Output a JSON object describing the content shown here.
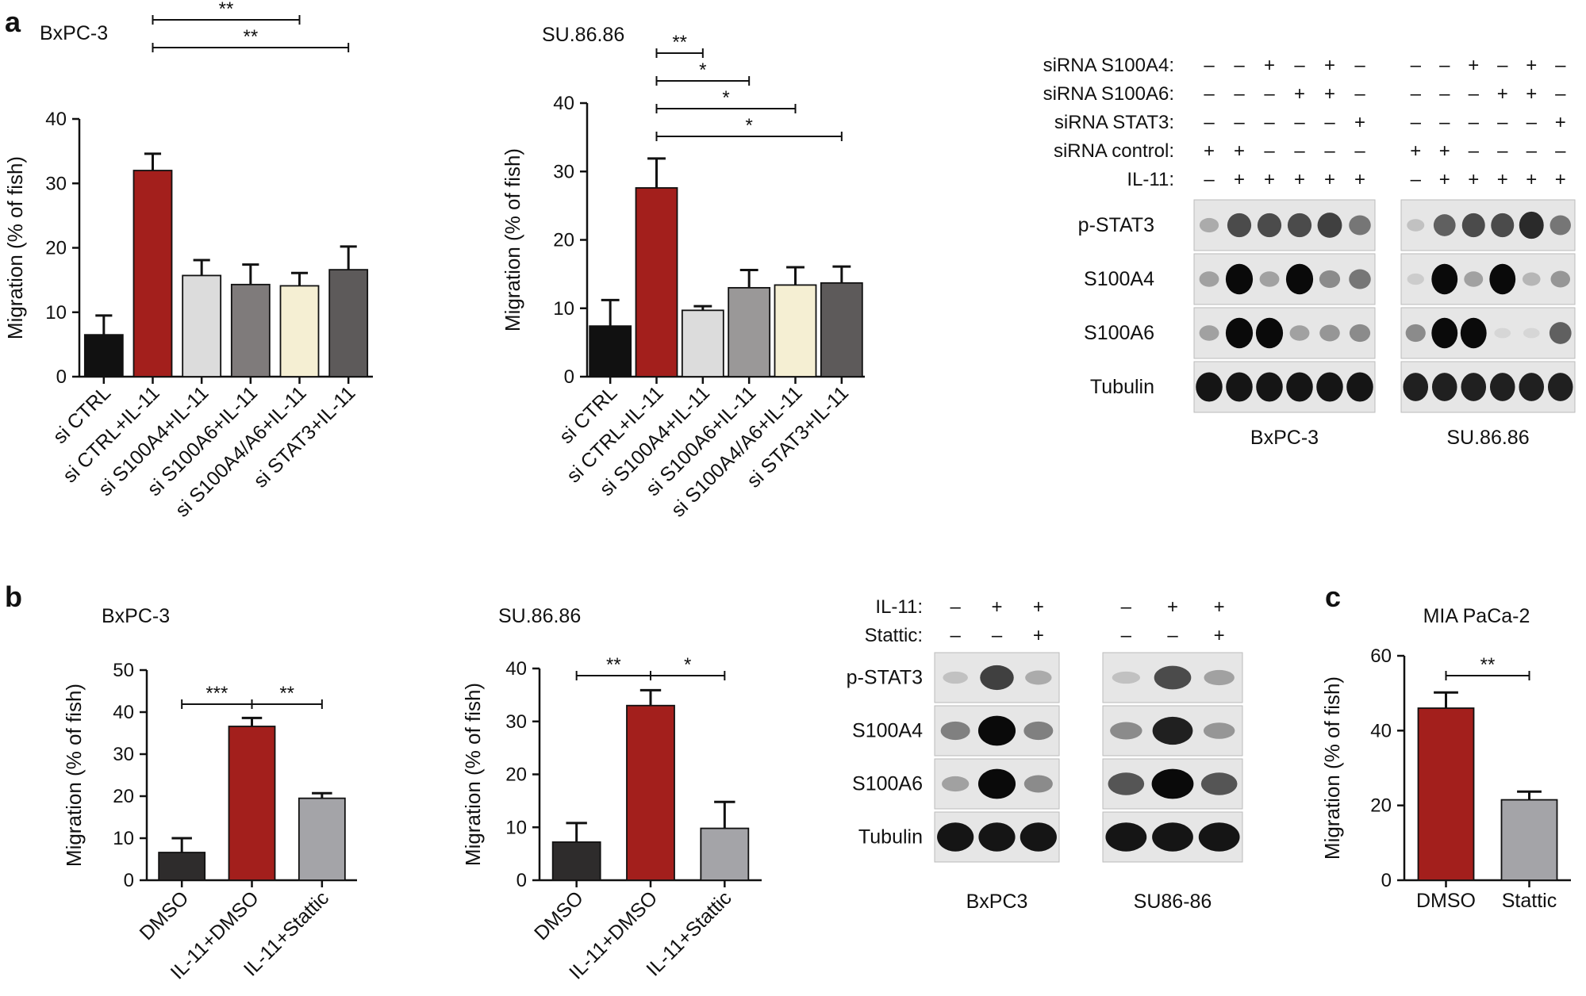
{
  "panels": {
    "a": "a",
    "b": "b",
    "c": "c"
  },
  "chart_data": [
    {
      "type": "bar",
      "panel": "a",
      "title": "BxPC-3",
      "ylabel": "Migration (% of fish)",
      "ylim": [
        0,
        40
      ],
      "yticks": [
        0,
        10,
        20,
        30,
        40
      ],
      "categories": [
        "si CTRL",
        "si CTRL+IL-11",
        "si S100A4+IL-11",
        "si S100A6+IL-11",
        "si S100A4/A6+IL-11",
        "si STAT3+IL-11"
      ],
      "values": [
        6.5,
        32,
        15.7,
        14.3,
        14.1,
        16.6
      ],
      "errors": [
        3.0,
        2.6,
        2.4,
        3.1,
        2.0,
        3.6
      ],
      "colors": [
        "#111111",
        "#a31f1c",
        "#dcdcdc",
        "#7f7b7b",
        "#f5efd3",
        "#5d5a5a"
      ],
      "significance": [
        {
          "from": 1,
          "to": 5,
          "label": "**"
        },
        {
          "from": 1,
          "to": 4,
          "label": "**"
        },
        {
          "from": 1,
          "to": 3,
          "label": "**"
        },
        {
          "from": 1,
          "to": 2,
          "label": "**"
        }
      ]
    },
    {
      "type": "bar",
      "panel": "a",
      "title": "SU.86.86",
      "ylabel": "Migration (% of fish)",
      "ylim": [
        0,
        40
      ],
      "yticks": [
        0,
        10,
        20,
        30,
        40
      ],
      "categories": [
        "si CTRL",
        "si CTRL+IL-11",
        "si S100A4+IL-11",
        "si S100A6+IL-11",
        "si S100A4/A6+IL-11",
        "si STAT3+IL-11"
      ],
      "values": [
        7.4,
        27.6,
        9.7,
        13.0,
        13.4,
        13.7
      ],
      "errors": [
        3.8,
        4.3,
        0.6,
        2.6,
        2.6,
        2.4
      ],
      "colors": [
        "#111111",
        "#a31f1c",
        "#dcdcdc",
        "#9a9898",
        "#f5efd3",
        "#5d5a5a"
      ],
      "significance": [
        {
          "from": 1,
          "to": 5,
          "label": "*"
        },
        {
          "from": 1,
          "to": 4,
          "label": "*"
        },
        {
          "from": 1,
          "to": 3,
          "label": "*"
        },
        {
          "from": 1,
          "to": 2,
          "label": "**"
        }
      ]
    },
    {
      "type": "bar",
      "panel": "b",
      "title": "BxPC-3",
      "ylabel": "Migration (% of fish)",
      "ylim": [
        0,
        50
      ],
      "yticks": [
        0,
        10,
        20,
        30,
        40,
        50
      ],
      "categories": [
        "DMSO",
        "IL-11+DMSO",
        "IL-11+Stattic"
      ],
      "values": [
        6.6,
        36.6,
        19.5
      ],
      "errors": [
        3.4,
        2.0,
        1.2
      ],
      "colors": [
        "#2e2c2c",
        "#a31f1c",
        "#a4a4a8"
      ],
      "significance": [
        {
          "from": 0,
          "to": 1,
          "label": "***"
        },
        {
          "from": 1,
          "to": 2,
          "label": "**"
        }
      ]
    },
    {
      "type": "bar",
      "panel": "b",
      "title": "SU.86.86",
      "ylabel": "Migration (% of fish)",
      "ylim": [
        0,
        40
      ],
      "yticks": [
        0,
        10,
        20,
        30,
        40
      ],
      "categories": [
        "DMSO",
        "IL-11+DMSO",
        "IL-11+Stattic"
      ],
      "values": [
        7.2,
        33.0,
        9.8
      ],
      "errors": [
        3.6,
        2.9,
        5.0
      ],
      "colors": [
        "#2e2c2c",
        "#a31f1c",
        "#a4a4a8"
      ],
      "significance": [
        {
          "from": 0,
          "to": 1,
          "label": "**"
        },
        {
          "from": 1,
          "to": 2,
          "label": "*"
        }
      ]
    },
    {
      "type": "bar",
      "panel": "c",
      "title": "MIA PaCa-2",
      "ylabel": "Migration (% of fish)",
      "ylim": [
        0,
        60
      ],
      "yticks": [
        0,
        20,
        40,
        60
      ],
      "categories": [
        "DMSO",
        "Stattic"
      ],
      "values": [
        46,
        21.5
      ],
      "errors": [
        4.2,
        2.2
      ],
      "colors": [
        "#a31f1c",
        "#a4a4a8"
      ],
      "significance": [
        {
          "from": 0,
          "to": 1,
          "label": "**"
        }
      ]
    }
  ],
  "blots": {
    "a": {
      "conditions": [
        {
          "label": "siRNA S100A4:",
          "marks": [
            "–",
            "–",
            "+",
            "–",
            "+",
            "–",
            "–",
            "–",
            "+",
            "–",
            "+",
            "–"
          ]
        },
        {
          "label": "siRNA S100A6:",
          "marks": [
            "–",
            "–",
            "–",
            "+",
            "+",
            "–",
            "–",
            "–",
            "–",
            "+",
            "+",
            "–"
          ]
        },
        {
          "label": "siRNA STAT3:",
          "marks": [
            "–",
            "–",
            "–",
            "–",
            "–",
            "+",
            "–",
            "–",
            "–",
            "–",
            "–",
            "+"
          ]
        },
        {
          "label": "siRNA control:",
          "marks": [
            "+",
            "+",
            "–",
            "–",
            "–",
            "–",
            "+",
            "+",
            "–",
            "–",
            "–",
            "–"
          ]
        },
        {
          "label": "IL-11:",
          "marks": [
            "–",
            "+",
            "+",
            "+",
            "+",
            "+",
            "–",
            "+",
            "+",
            "+",
            "+",
            "+"
          ]
        }
      ],
      "proteins": [
        "p-STAT3",
        "S100A4",
        "S100A6",
        "Tubulin"
      ],
      "cell_lines": [
        "BxPC-3",
        "SU.86.86"
      ],
      "band_intensity": [
        [
          [
            0.25,
            0.7,
            0.7,
            0.7,
            0.75,
            0.5
          ],
          [
            0.15,
            0.6,
            0.7,
            0.7,
            0.85,
            0.5
          ]
        ],
        [
          [
            0.3,
            1.0,
            0.3,
            1.0,
            0.4,
            0.5
          ],
          [
            0.1,
            1.0,
            0.3,
            1.0,
            0.2,
            0.35
          ]
        ],
        [
          [
            0.3,
            1.0,
            1.0,
            0.3,
            0.35,
            0.4
          ],
          [
            0.4,
            1.0,
            1.0,
            0.05,
            0.05,
            0.6
          ]
        ],
        [
          [
            0.95,
            0.95,
            0.95,
            0.95,
            0.95,
            0.95
          ],
          [
            0.9,
            0.9,
            0.9,
            0.9,
            0.9,
            0.9
          ]
        ]
      ]
    },
    "b": {
      "conditions": [
        {
          "label": "IL-11:",
          "marks": [
            "–",
            "+",
            "+",
            "–",
            "+",
            "+"
          ]
        },
        {
          "label": "Stattic:",
          "marks": [
            "–",
            "–",
            "+",
            "–",
            "–",
            "+"
          ]
        }
      ],
      "proteins": [
        "p-STAT3",
        "S100A4",
        "S100A6",
        "Tubulin"
      ],
      "cell_lines": [
        "BxPC3",
        "SU86-86"
      ],
      "band_intensity": [
        [
          [
            0.15,
            0.75,
            0.25
          ],
          [
            0.15,
            0.7,
            0.3
          ]
        ],
        [
          [
            0.45,
            1.0,
            0.45
          ],
          [
            0.4,
            0.9,
            0.35
          ]
        ],
        [
          [
            0.3,
            1.0,
            0.4
          ],
          [
            0.65,
            1.0,
            0.65
          ]
        ],
        [
          [
            0.95,
            0.95,
            0.95
          ],
          [
            0.95,
            0.95,
            0.95
          ]
        ]
      ]
    }
  }
}
